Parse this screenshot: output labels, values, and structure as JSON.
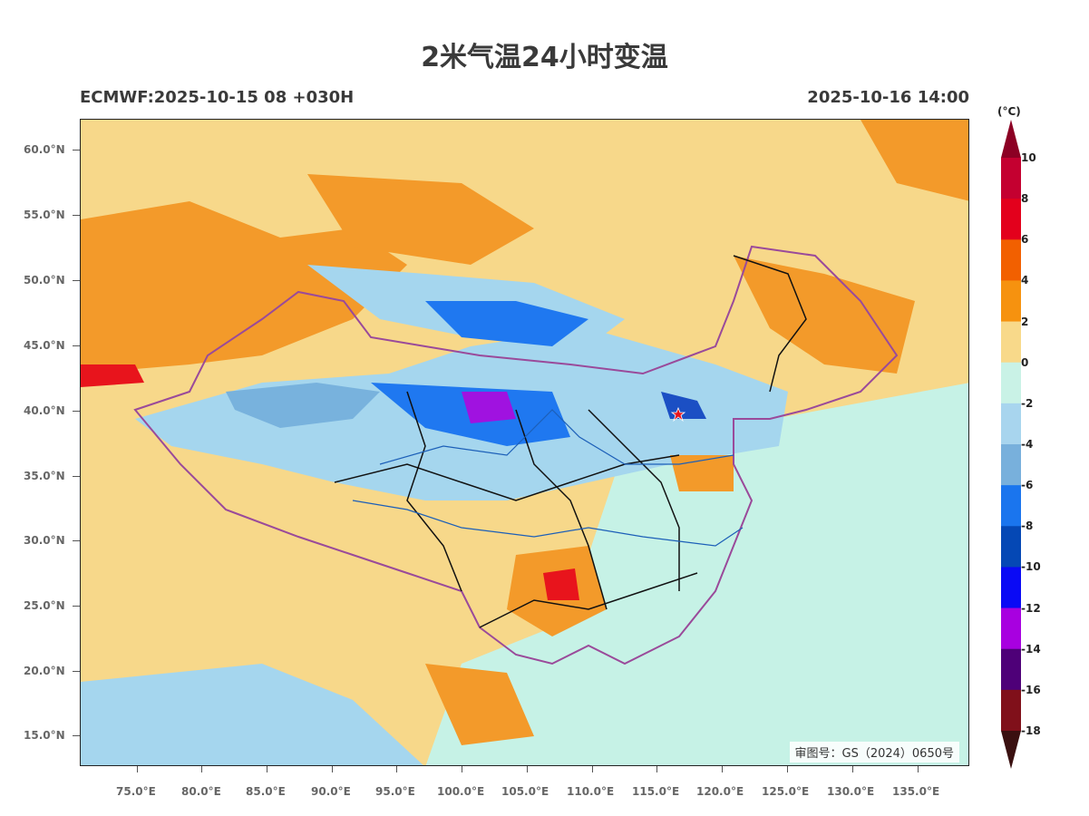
{
  "header": {
    "title": "2米气温24小时变温",
    "model_run": "ECMWF:2025-10-15 08 +030H",
    "valid_time": "2025-10-16 14:00"
  },
  "map": {
    "watermark": "审图号：GS（2024）0650号",
    "lat_labels": [
      "60.0°N",
      "55.0°N",
      "50.0°N",
      "45.0°N",
      "40.0°N",
      "35.0°N",
      "30.0°N",
      "25.0°N",
      "20.0°N",
      "15.0°N"
    ],
    "lon_labels": [
      "75.0°E",
      "80.0°E",
      "85.0°E",
      "90.0°E",
      "95.0°E",
      "100.0°E",
      "105.0°E",
      "110.0°E",
      "115.0°E",
      "120.0°E",
      "125.0°E",
      "130.0°E",
      "135.0°E"
    ],
    "marker": "star-icon",
    "colors": {
      "warm_0_2": "#f7d88a",
      "warm_2_4": "#f39a2a",
      "warm_4_6": "#ef6a12",
      "warm_6_8": "#e8141c",
      "cool_0_m2": "#c6f2e6",
      "cool_m2_m4": "#a5d6ee",
      "cool_m4_m6": "#78b2dd",
      "cool_m6_m8": "#1f78f0",
      "cool_m8_m10": "#1b4fc4",
      "cool_m10_m12": "#1414f0",
      "cool_m12_m14": "#a012e0",
      "boundary_country": "#9a4a9a",
      "boundary_province": "#111111",
      "river": "#1c5fb8"
    }
  },
  "colorbar": {
    "unit": "(°C)",
    "labels": [
      "10",
      "8",
      "6",
      "4",
      "2",
      "0",
      "-2",
      "-4",
      "-6",
      "-8",
      "-10",
      "-12",
      "-14",
      "-16",
      "-18"
    ],
    "colors": [
      "#c40030",
      "#e3001c",
      "#f26000",
      "#f6920f",
      "#f8d98a",
      "#c9f2e6",
      "#a8d5ee",
      "#78b0dc",
      "#1a75ee",
      "#0548b5",
      "#0a0af5",
      "#a800e0",
      "#4e0078",
      "#80101a"
    ],
    "top_color": "#8c0024",
    "bottom_color": "#3a1010"
  }
}
